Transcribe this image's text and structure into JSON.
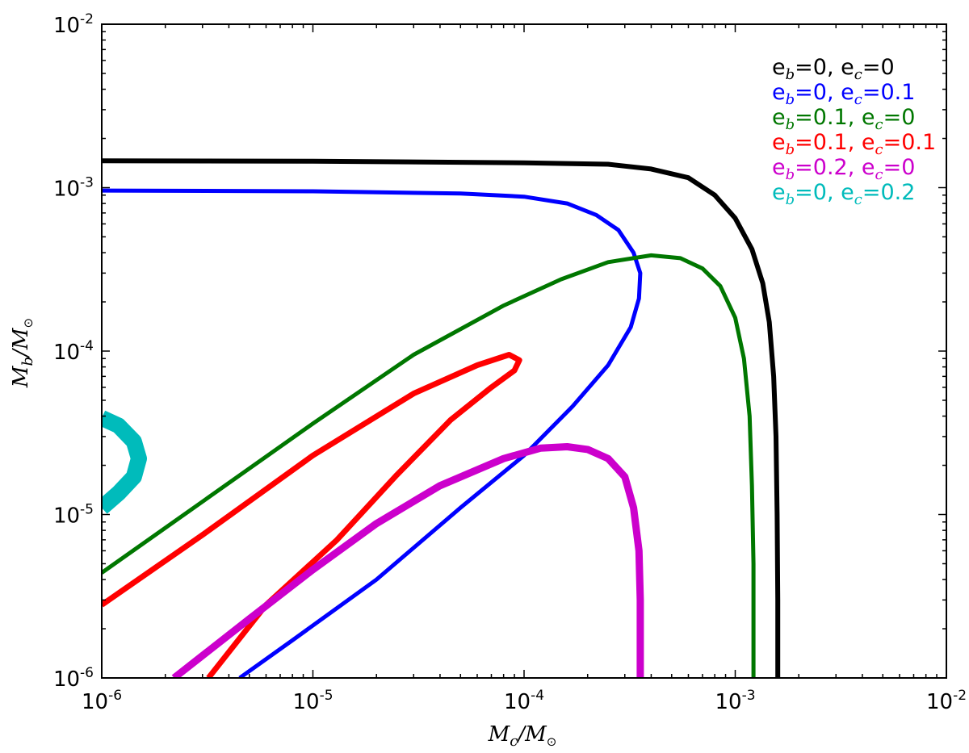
{
  "chart_data": {
    "type": "line",
    "title": "",
    "x_scale": "log",
    "y_scale": "log",
    "xlim": [
      1e-06,
      0.01
    ],
    "ylim": [
      1e-06,
      0.01
    ],
    "grid": false,
    "legend_position": "top-right",
    "xlabel": {
      "main": "M",
      "sub": "c",
      "slash": "/",
      "denom": "M",
      "denom_sub": "⊙"
    },
    "ylabel": {
      "main": "M",
      "sub": "b",
      "slash": "/",
      "denom": "M",
      "denom_sub": "⊙"
    },
    "x_ticks": [
      {
        "value": 1e-06,
        "base": "10",
        "exp": "-6"
      },
      {
        "value": 1e-05,
        "base": "10",
        "exp": "-5"
      },
      {
        "value": 0.0001,
        "base": "10",
        "exp": "-4"
      },
      {
        "value": 0.001,
        "base": "10",
        "exp": "-3"
      },
      {
        "value": 0.01,
        "base": "10",
        "exp": "-2"
      }
    ],
    "y_ticks": [
      {
        "value": 1e-06,
        "base": "10",
        "exp": "-6"
      },
      {
        "value": 1e-05,
        "base": "10",
        "exp": "-5"
      },
      {
        "value": 0.0001,
        "base": "10",
        "exp": "-4"
      },
      {
        "value": 0.001,
        "base": "10",
        "exp": "-3"
      },
      {
        "value": 0.01,
        "base": "10",
        "exp": "-2"
      }
    ],
    "series": [
      {
        "key": "eb0-ec0",
        "label": {
          "e1": "e",
          "s1": "b",
          "v1": "=0, ",
          "e2": "e",
          "s2": "c",
          "v2": "=0"
        },
        "color": "#000000",
        "width": 6,
        "points": [
          [
            1e-06,
            0.00146
          ],
          [
            1e-05,
            0.00145
          ],
          [
            0.0001,
            0.00142
          ],
          [
            0.00025,
            0.00139
          ],
          [
            0.0004,
            0.0013
          ],
          [
            0.0006,
            0.00115
          ],
          [
            0.0008,
            0.0009
          ],
          [
            0.001,
            0.00065
          ],
          [
            0.0012,
            0.00042
          ],
          [
            0.00135,
            0.00026
          ],
          [
            0.00145,
            0.00015
          ],
          [
            0.00152,
            7e-05
          ],
          [
            0.00156,
            3e-05
          ],
          [
            0.00158,
            1e-05
          ],
          [
            0.00159,
            3e-06
          ],
          [
            0.00159,
            1e-06
          ]
        ]
      },
      {
        "key": "eb0-ec01",
        "label": {
          "e1": "e",
          "s1": "b",
          "v1": "=0, ",
          "e2": "e",
          "s2": "c",
          "v2": "=0.1"
        },
        "color": "#0000ff",
        "width": 5,
        "points": [
          [
            1e-06,
            0.00096
          ],
          [
            1e-05,
            0.00095
          ],
          [
            5e-05,
            0.00092
          ],
          [
            0.0001,
            0.00088
          ],
          [
            0.00016,
            0.0008
          ],
          [
            0.00022,
            0.00068
          ],
          [
            0.00028,
            0.00055
          ],
          [
            0.00033,
            0.0004
          ],
          [
            0.000355,
            0.0003
          ],
          [
            0.00035,
            0.00021
          ],
          [
            0.00032,
            0.00014
          ],
          [
            0.00025,
            8.2e-05
          ],
          [
            0.00017,
            4.6e-05
          ],
          [
            0.0001,
            2.3e-05
          ],
          [
            5e-05,
            1.1e-05
          ],
          [
            2e-05,
            4e-06
          ],
          [
            8e-06,
            1.7e-06
          ],
          [
            4.5e-06,
            1e-06
          ]
        ]
      },
      {
        "key": "eb01-ec0",
        "label": {
          "e1": "e",
          "s1": "b",
          "v1": "=0.1, ",
          "e2": "e",
          "s2": "c",
          "v2": "=0"
        },
        "color": "#007700",
        "width": 5,
        "points": [
          [
            1e-06,
            4.4e-06
          ],
          [
            3e-06,
            1.2e-05
          ],
          [
            1e-05,
            3.6e-05
          ],
          [
            3e-05,
            9.5e-05
          ],
          [
            8e-05,
            0.00019
          ],
          [
            0.00015,
            0.000275
          ],
          [
            0.00025,
            0.00035
          ],
          [
            0.0004,
            0.000385
          ],
          [
            0.00055,
            0.00037
          ],
          [
            0.0007,
            0.00032
          ],
          [
            0.00085,
            0.00025
          ],
          [
            0.001,
            0.00016
          ],
          [
            0.0011,
            9e-05
          ],
          [
            0.00117,
            4e-05
          ],
          [
            0.0012,
            1.5e-05
          ],
          [
            0.00122,
            5e-06
          ],
          [
            0.00122,
            1e-06
          ]
        ]
      },
      {
        "key": "eb01-ec01",
        "label": {
          "e1": "e",
          "s1": "b",
          "v1": "=0.1, ",
          "e2": "e",
          "s2": "c",
          "v2": "=0.1"
        },
        "color": "#ff0000",
        "width": 7,
        "points": [
          [
            1e-06,
            2.8e-06
          ],
          [
            3e-06,
            7.5e-06
          ],
          [
            1e-05,
            2.3e-05
          ],
          [
            3e-05,
            5.5e-05
          ],
          [
            6e-05,
            8.2e-05
          ],
          [
            8.5e-05,
            9.5e-05
          ],
          [
            9.5e-05,
            8.8e-05
          ],
          [
            9e-05,
            7.6e-05
          ],
          [
            7e-05,
            6e-05
          ],
          [
            4.5e-05,
            3.8e-05
          ],
          [
            2.5e-05,
            1.75e-05
          ],
          [
            1.3e-05,
            7e-06
          ],
          [
            6e-06,
            2.8e-06
          ],
          [
            3.2e-06,
            1e-06
          ]
        ]
      },
      {
        "key": "eb02-ec0",
        "label": {
          "e1": "e",
          "s1": "b",
          "v1": "=0.2, ",
          "e2": "e",
          "s2": "c",
          "v2": "=0"
        },
        "color": "#cc00cc",
        "width": 9,
        "points": [
          [
            2.2e-06,
            1e-06
          ],
          [
            5e-06,
            2.3e-06
          ],
          [
            1e-05,
            4.6e-06
          ],
          [
            2e-05,
            8.8e-06
          ],
          [
            4e-05,
            1.5e-05
          ],
          [
            8e-05,
            2.2e-05
          ],
          [
            0.00012,
            2.55e-05
          ],
          [
            0.00016,
            2.6e-05
          ],
          [
            0.0002,
            2.5e-05
          ],
          [
            0.00025,
            2.2e-05
          ],
          [
            0.0003,
            1.7e-05
          ],
          [
            0.00033,
            1.1e-05
          ],
          [
            0.00035,
            6e-06
          ],
          [
            0.000355,
            3e-06
          ],
          [
            0.000355,
            1e-06
          ]
        ]
      },
      {
        "key": "eb0-ec02",
        "label": {
          "e1": "e",
          "s1": "b",
          "v1": "=0, ",
          "e2": "e",
          "s2": "c",
          "v2": "=0.2"
        },
        "color": "#00bbbb",
        "width": 20,
        "points": [
          [
            1e-06,
            3.9e-05
          ],
          [
            1.2e-06,
            3.5e-05
          ],
          [
            1.42e-06,
            2.8e-05
          ],
          [
            1.5e-06,
            2.2e-05
          ],
          [
            1.42e-06,
            1.7e-05
          ],
          [
            1.2e-06,
            1.35e-05
          ],
          [
            1e-06,
            1.1e-05
          ]
        ]
      }
    ]
  }
}
